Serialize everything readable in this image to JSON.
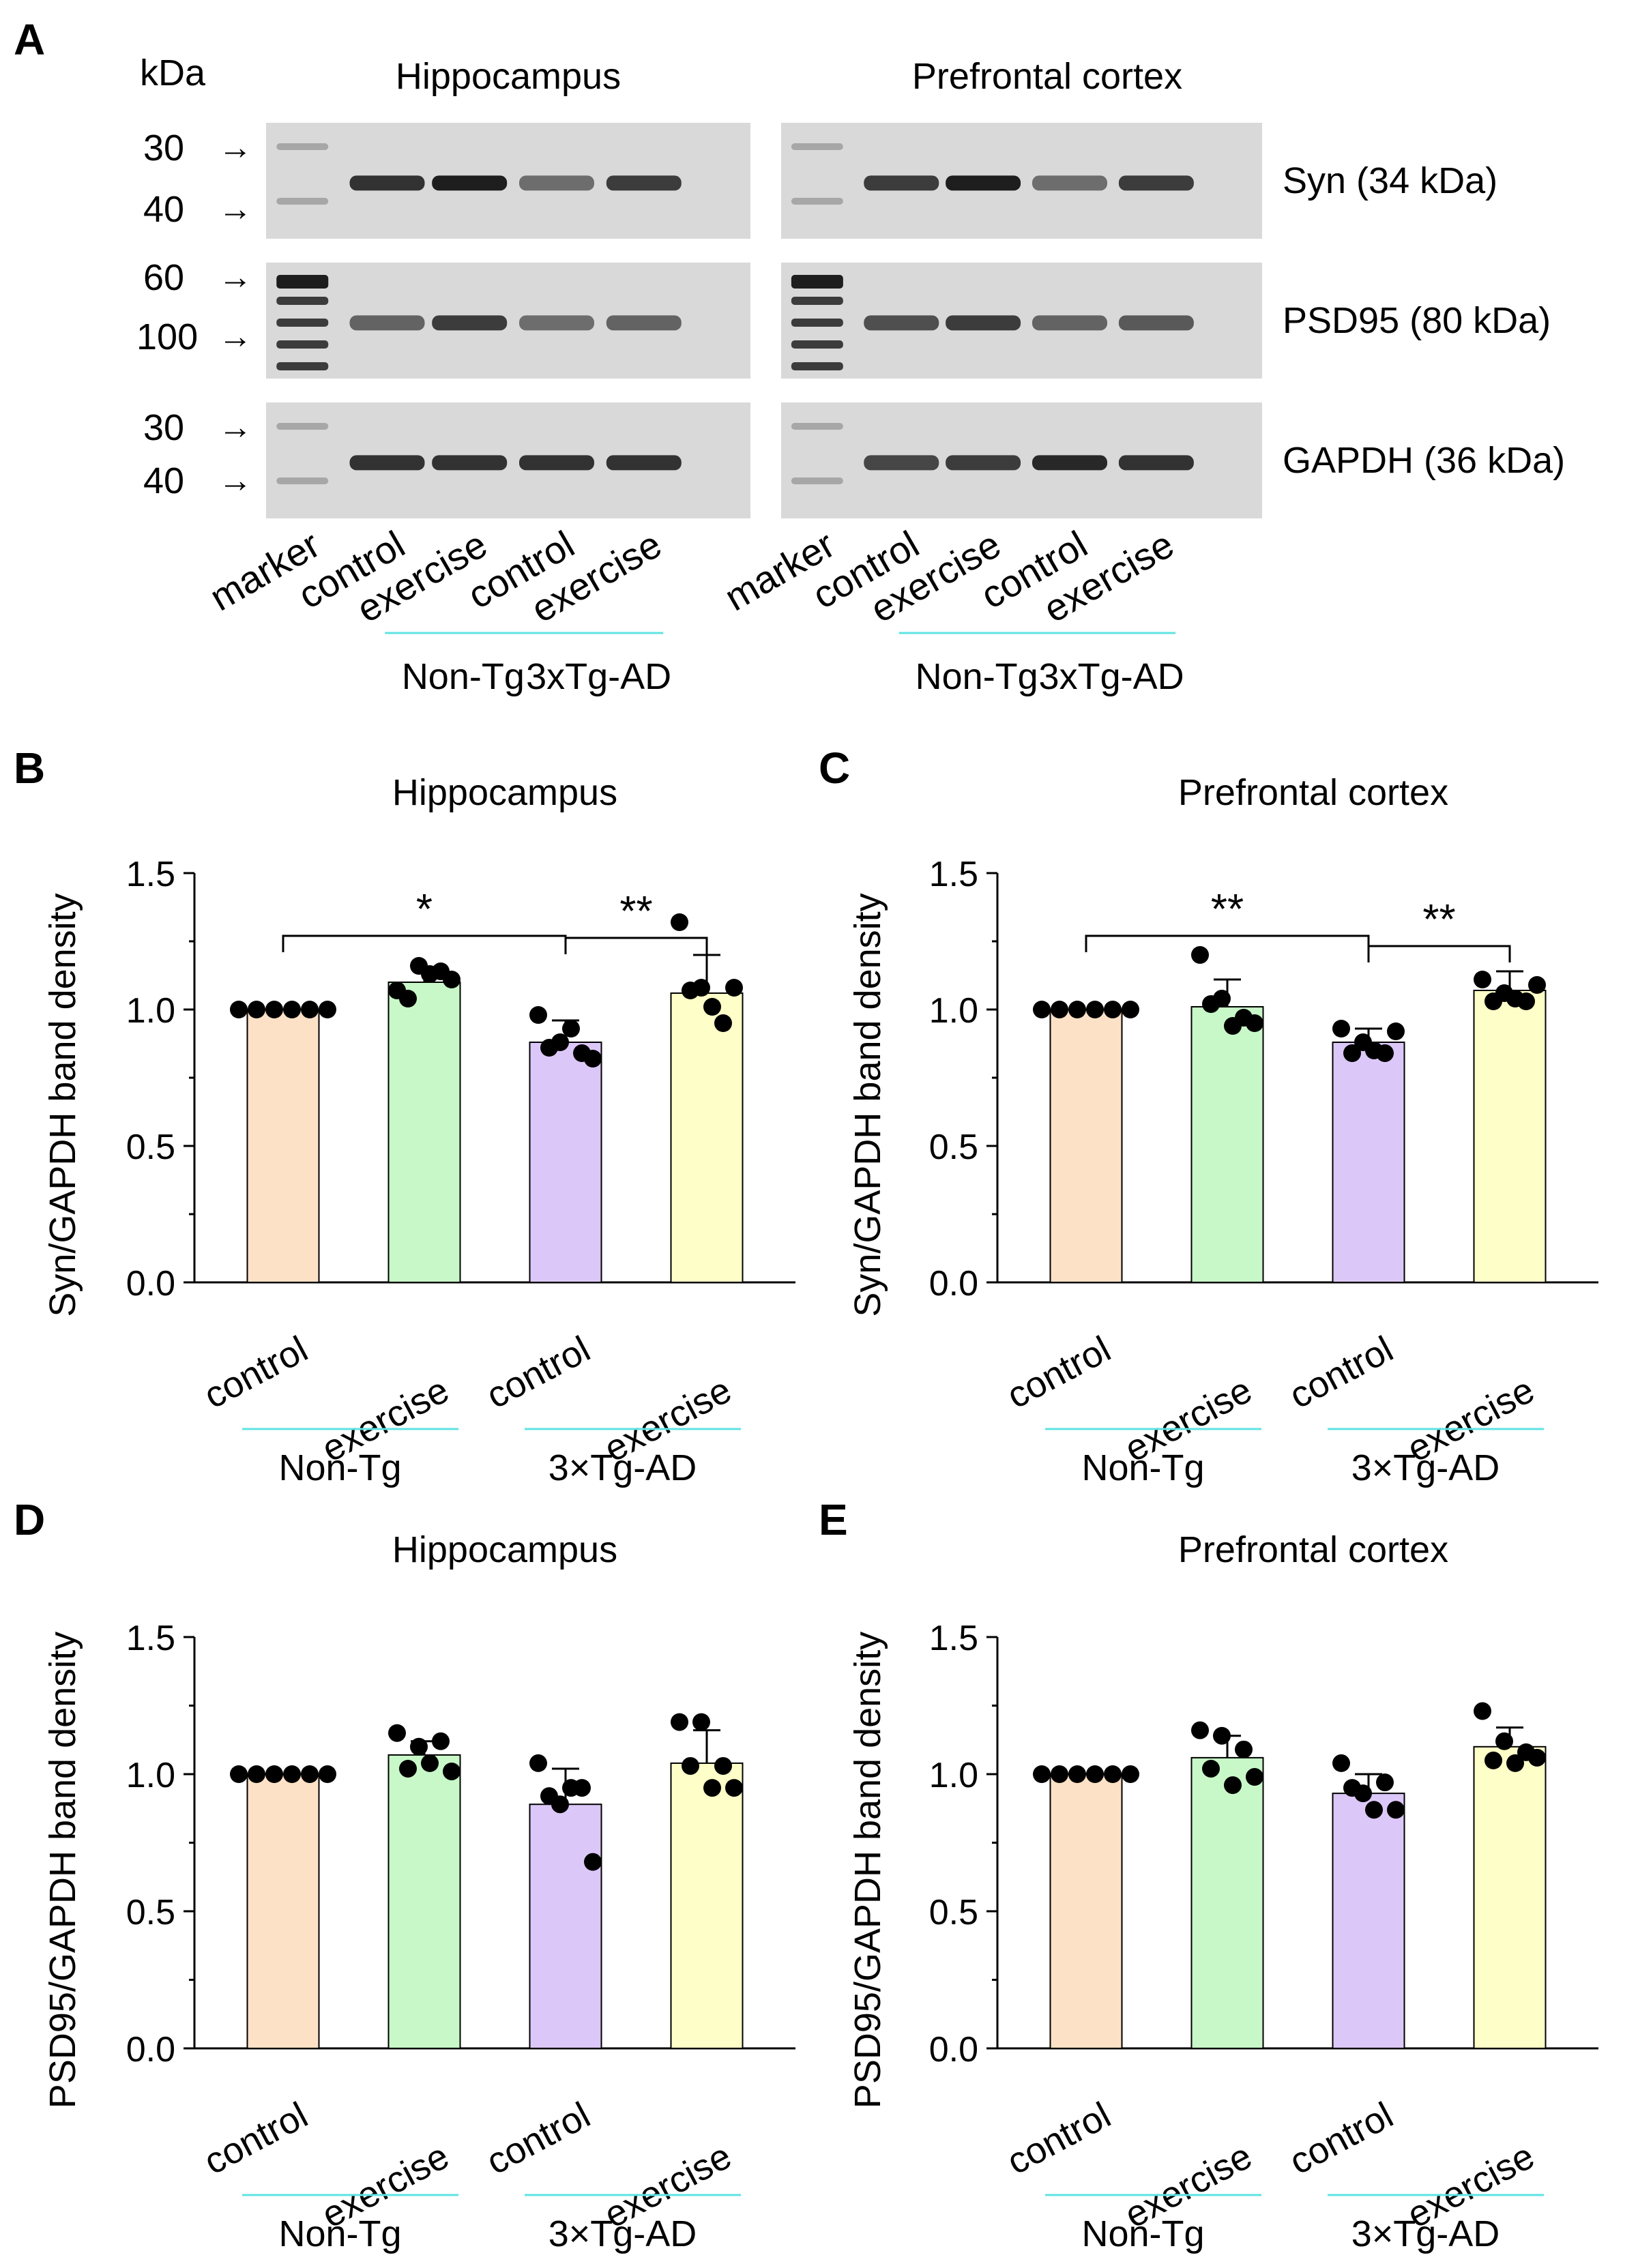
{
  "colors": {
    "control_nontg": "#fde1c6",
    "exercise_nontg": "#c8f8c8",
    "control_tg": "#dcc8f8",
    "exercise_tg": "#fefec8",
    "cyan_line": "#5fe3e3",
    "blot_bg": "#d9d9d9",
    "band": "#141414"
  },
  "blot": {
    "panel_letter": "A",
    "kda_label": "kDa",
    "arrow": "→",
    "titles": [
      "Hippocampus",
      "Prefrontal cortex"
    ],
    "rows": [
      {
        "name": "Syn (34 kDa)",
        "markers": [
          "30",
          "40"
        ],
        "left_intensity": [
          0.0,
          0.85,
          0.95,
          0.55,
          0.8
        ],
        "right_intensity": [
          0.0,
          0.8,
          0.95,
          0.55,
          0.8
        ]
      },
      {
        "name": "PSD95 (80 kDa)",
        "markers": [
          "60",
          "100"
        ],
        "left_intensity": [
          0.0,
          0.6,
          0.8,
          0.55,
          0.6
        ],
        "right_intensity": [
          0.0,
          0.7,
          0.8,
          0.6,
          0.65
        ]
      },
      {
        "name": "GAPDH (36 kDa)",
        "markers": [
          "30",
          "40"
        ],
        "left_intensity": [
          0.0,
          0.85,
          0.85,
          0.85,
          0.85
        ],
        "right_intensity": [
          0.0,
          0.75,
          0.8,
          0.9,
          0.85
        ]
      }
    ],
    "lane_labels": [
      "marker",
      "control",
      "exercise",
      "control",
      "exercise"
    ],
    "group_labels": [
      "Non-Tg",
      "3xTg-AD"
    ]
  },
  "chart_data": [
    {
      "panel": "B",
      "type": "bar",
      "title": "Hippocampus",
      "ylabel": "Syn/GAPDH band density",
      "ylim": [
        0,
        1.5
      ],
      "yticks": [
        "0.0",
        "0.5",
        "1.0",
        "1.5"
      ],
      "categories": [
        "control",
        "exercise",
        "control",
        "exercise"
      ],
      "groups": [
        "Non-Tg",
        "3×Tg-AD"
      ],
      "values": [
        1.0,
        1.1,
        0.88,
        1.06
      ],
      "errors": [
        0.0,
        0.05,
        0.08,
        0.14
      ],
      "points": [
        [
          1.0,
          1.0,
          1.0,
          1.0,
          1.0,
          1.0
        ],
        [
          1.07,
          1.16,
          1.14,
          1.04,
          1.13,
          1.11
        ],
        [
          0.98,
          0.88,
          0.84,
          0.86,
          0.93,
          0.82
        ],
        [
          1.32,
          1.08,
          0.95,
          1.07,
          1.01,
          1.08
        ]
      ],
      "significance": [
        {
          "from": 0,
          "to": 2,
          "label": "*"
        },
        {
          "from": 2,
          "to": 3,
          "label": "**"
        }
      ]
    },
    {
      "panel": "C",
      "type": "bar",
      "title": "Prefrontal cortex",
      "ylabel": "Syn/GAPDH band density",
      "ylim": [
        0,
        1.5
      ],
      "yticks": [
        "0.0",
        "0.5",
        "1.0",
        "1.5"
      ],
      "categories": [
        "control",
        "exercise",
        "control",
        "exercise"
      ],
      "groups": [
        "Non-Tg",
        "3×Tg-AD"
      ],
      "values": [
        1.0,
        1.01,
        0.88,
        1.07
      ],
      "errors": [
        0.0,
        0.1,
        0.05,
        0.07
      ],
      "points": [
        [
          1.0,
          1.0,
          1.0,
          1.0,
          1.0,
          1.0
        ],
        [
          1.2,
          1.04,
          0.97,
          1.02,
          0.94,
          0.95
        ],
        [
          0.93,
          0.88,
          0.84,
          0.84,
          0.85,
          0.92
        ],
        [
          1.11,
          1.06,
          1.03,
          1.03,
          1.04,
          1.09
        ]
      ],
      "significance": [
        {
          "from": 0,
          "to": 2,
          "label": "**"
        },
        {
          "from": 2,
          "to": 3,
          "label": "**"
        }
      ]
    },
    {
      "panel": "D",
      "type": "bar",
      "title": "Hippocampus",
      "ylabel": "PSD95/GAPDH band density",
      "ylim": [
        0,
        1.5
      ],
      "yticks": [
        "0.0",
        "0.5",
        "1.0",
        "1.5"
      ],
      "categories": [
        "control",
        "exercise",
        "control",
        "exercise"
      ],
      "groups": [
        "Non-Tg",
        "3×Tg-AD"
      ],
      "values": [
        1.0,
        1.07,
        0.89,
        1.04
      ],
      "errors": [
        0.0,
        0.05,
        0.13,
        0.12
      ],
      "points": [
        [
          1.0,
          1.0,
          1.0,
          1.0,
          1.0,
          1.0
        ],
        [
          1.15,
          1.1,
          1.12,
          1.02,
          1.04,
          1.01
        ],
        [
          1.04,
          0.89,
          0.95,
          0.92,
          0.95,
          0.68
        ],
        [
          1.19,
          1.19,
          1.03,
          1.03,
          0.95,
          0.95
        ]
      ],
      "significance": []
    },
    {
      "panel": "E",
      "type": "bar",
      "title": "Prefrontal cortex",
      "ylabel": "PSD95/GAPDH band density",
      "ylim": [
        0,
        1.5
      ],
      "yticks": [
        "0.0",
        "0.5",
        "1.0",
        "1.5"
      ],
      "categories": [
        "control",
        "exercise",
        "control",
        "exercise"
      ],
      "groups": [
        "Non-Tg",
        "3×Tg-AD"
      ],
      "values": [
        1.0,
        1.06,
        0.93,
        1.1
      ],
      "errors": [
        0.0,
        0.08,
        0.07,
        0.07
      ],
      "points": [
        [
          1.0,
          1.0,
          1.0,
          1.0,
          1.0,
          1.0
        ],
        [
          1.16,
          1.14,
          1.09,
          1.02,
          0.96,
          0.99
        ],
        [
          1.04,
          0.93,
          0.97,
          0.95,
          0.87,
          0.87
        ],
        [
          1.23,
          1.12,
          1.08,
          1.05,
          1.04,
          1.06
        ]
      ],
      "significance": []
    }
  ]
}
